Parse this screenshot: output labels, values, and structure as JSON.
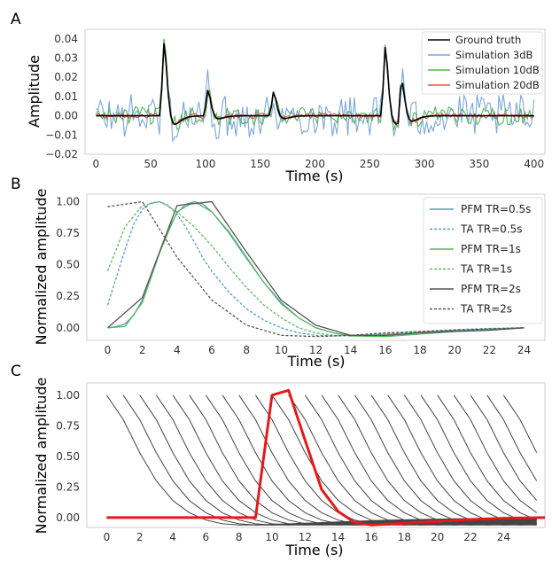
{
  "chart_data": [
    {
      "panel_label": "A",
      "type": "line",
      "xlabel": "Time (s)",
      "ylabel": "Amplitude",
      "xlim": [
        -10,
        410
      ],
      "ylim": [
        -0.02,
        0.045
      ],
      "xticks": [
        0,
        50,
        100,
        150,
        200,
        250,
        300,
        350,
        400
      ],
      "yticks": [
        -0.02,
        -0.01,
        0.0,
        0.01,
        0.02,
        0.03,
        0.04
      ],
      "ytick_labels": [
        "−0.02",
        "−0.01",
        "0.00",
        "0.01",
        "0.02",
        "0.03",
        "0.04"
      ],
      "grid": false,
      "legend_position": "top-right",
      "events": [
        {
          "t": 60,
          "amp": 0.04
        },
        {
          "t": 100,
          "amp": 0.014
        },
        {
          "t": 160,
          "amp": 0.013
        },
        {
          "t": 262,
          "amp": 0.038
        },
        {
          "t": 277,
          "amp": 0.022
        }
      ],
      "series": [
        {
          "name": "Ground truth",
          "color": "#000000",
          "noise": 0.0
        },
        {
          "name": "Simulation 3dB",
          "color": "#7aa6dc",
          "noise": 0.008
        },
        {
          "name": "Simulation 10dB",
          "color": "#56b45a",
          "noise": 0.0035
        },
        {
          "name": "Simulation 20dB",
          "color": "#e8514b",
          "noise": 0.001
        }
      ]
    },
    {
      "panel_label": "B",
      "type": "line",
      "xlabel": "Time (s)",
      "ylabel": "Normalized amplitude",
      "xlim": [
        -1.2,
        25.2
      ],
      "ylim": [
        -0.1,
        1.06
      ],
      "xticks": [
        0,
        2,
        4,
        6,
        8,
        10,
        12,
        14,
        16,
        18,
        20,
        22,
        24
      ],
      "yticks": [
        0.0,
        0.25,
        0.5,
        0.75,
        1.0
      ],
      "ytick_labels": [
        "0.00",
        "0.25",
        "0.50",
        "0.75",
        "1.00"
      ],
      "grid": false,
      "legend_position": "top-right",
      "series": [
        {
          "name": "PFM TR=0.5s",
          "color": "#4f9fbb",
          "dash": false,
          "x": [
            0,
            0.5,
            1,
            1.5,
            2,
            2.5,
            3,
            3.5,
            4,
            4.5,
            5,
            5.5,
            6,
            7,
            8,
            9,
            10,
            11,
            12,
            13,
            14,
            16,
            18,
            20,
            22,
            24
          ],
          "y": [
            0,
            0.01,
            0.03,
            0.1,
            0.22,
            0.4,
            0.6,
            0.78,
            0.91,
            0.98,
            1.0,
            0.98,
            0.92,
            0.75,
            0.55,
            0.36,
            0.2,
            0.08,
            0.0,
            -0.04,
            -0.065,
            -0.06,
            -0.04,
            -0.02,
            -0.01,
            0.0
          ]
        },
        {
          "name": "TA TR=0.5s",
          "color": "#4f9fbb",
          "dash": true,
          "x": [
            0,
            0.5,
            1,
            1.5,
            2,
            2.5,
            3,
            3.5,
            4,
            4.5,
            5,
            5.5,
            6,
            7,
            8,
            9,
            10,
            11,
            12,
            13,
            14,
            16,
            18,
            20,
            22,
            24
          ],
          "y": [
            0.18,
            0.4,
            0.62,
            0.82,
            0.94,
            0.99,
            1.0,
            0.97,
            0.9,
            0.8,
            0.68,
            0.55,
            0.45,
            0.28,
            0.15,
            0.06,
            0.0,
            -0.04,
            -0.06,
            -0.065,
            -0.06,
            -0.05,
            -0.03,
            -0.015,
            -0.005,
            0.0
          ]
        },
        {
          "name": "PFM TR=1s",
          "color": "#5cb860",
          "dash": false,
          "x": [
            0,
            1,
            2,
            3,
            4,
            5,
            6,
            7,
            8,
            9,
            10,
            11,
            12,
            13,
            14,
            16,
            18,
            20,
            22,
            24
          ],
          "y": [
            0,
            0.01,
            0.2,
            0.6,
            0.92,
            1.0,
            0.92,
            0.76,
            0.56,
            0.36,
            0.19,
            0.08,
            0.0,
            -0.04,
            -0.065,
            -0.07,
            -0.05,
            -0.03,
            -0.015,
            0.0
          ]
        },
        {
          "name": "TA TR=1s",
          "color": "#5cb860",
          "dash": true,
          "x": [
            0,
            1,
            2,
            3,
            4,
            5,
            6,
            7,
            8,
            9,
            10,
            11,
            12,
            13,
            14,
            16,
            18,
            20,
            22,
            24
          ],
          "y": [
            0.45,
            0.8,
            0.97,
            1.0,
            0.92,
            0.8,
            0.65,
            0.48,
            0.32,
            0.18,
            0.08,
            0.0,
            -0.04,
            -0.06,
            -0.065,
            -0.05,
            -0.035,
            -0.02,
            -0.01,
            0.0
          ]
        },
        {
          "name": "PFM TR=2s",
          "color": "#555555",
          "dash": false,
          "x": [
            0,
            2,
            4,
            6,
            8,
            10,
            12,
            14,
            16,
            18,
            20,
            22,
            24
          ],
          "y": [
            0,
            0.24,
            0.97,
            1.0,
            0.6,
            0.22,
            0.02,
            -0.06,
            -0.06,
            -0.04,
            -0.03,
            -0.02,
            0.0
          ]
        },
        {
          "name": "TA TR=2s",
          "color": "#555555",
          "dash": true,
          "x": [
            0,
            2,
            4,
            6,
            8,
            10,
            12,
            14,
            16,
            18,
            20,
            22,
            24
          ],
          "y": [
            0.96,
            1.0,
            0.56,
            0.22,
            0.02,
            -0.06,
            -0.07,
            -0.06,
            -0.04,
            -0.03,
            -0.02,
            -0.01,
            0.0
          ]
        }
      ]
    },
    {
      "panel_label": "C",
      "type": "line",
      "xlabel": "Time (s)",
      "ylabel": "Normalized amplitude",
      "xlim": [
        -1.2,
        26.5
      ],
      "ylim": [
        -0.08,
        1.1
      ],
      "xticks": [
        0,
        2,
        4,
        6,
        8,
        10,
        12,
        14,
        16,
        18,
        20,
        22,
        24
      ],
      "yticks": [
        0.0,
        0.25,
        0.5,
        0.75,
        1.0
      ],
      "ytick_labels": [
        "0.00",
        "0.25",
        "0.50",
        "0.75",
        "1.00"
      ],
      "grid": false,
      "shifted_curves": {
        "count": 25,
        "spacing": 1.0,
        "color": "#444444",
        "x": [
          0,
          1,
          2,
          3,
          4,
          5,
          6,
          7,
          8,
          9,
          10,
          11,
          12,
          13,
          14,
          15,
          16,
          17,
          18,
          19,
          20,
          21,
          22,
          23,
          24,
          25,
          26,
          27
        ],
        "y": [
          1.0,
          0.8,
          0.53,
          0.3,
          0.14,
          0.04,
          -0.02,
          -0.05,
          -0.06,
          -0.06,
          -0.055,
          -0.05,
          -0.045,
          -0.04,
          -0.035,
          -0.03,
          -0.025,
          -0.02,
          -0.018,
          -0.015,
          -0.012,
          -0.01,
          -0.008,
          -0.006,
          -0.004,
          -0.003,
          -0.002,
          -0.001
        ]
      },
      "highlight": {
        "color": "#e41a1c",
        "x": [
          0,
          9,
          10,
          11,
          12,
          13,
          14,
          15,
          16,
          18,
          20,
          22,
          24,
          26.5
        ],
        "y": [
          0,
          0,
          1.0,
          1.04,
          0.63,
          0.23,
          0.05,
          -0.04,
          -0.06,
          -0.045,
          -0.03,
          -0.015,
          -0.005,
          0.0
        ]
      }
    }
  ]
}
